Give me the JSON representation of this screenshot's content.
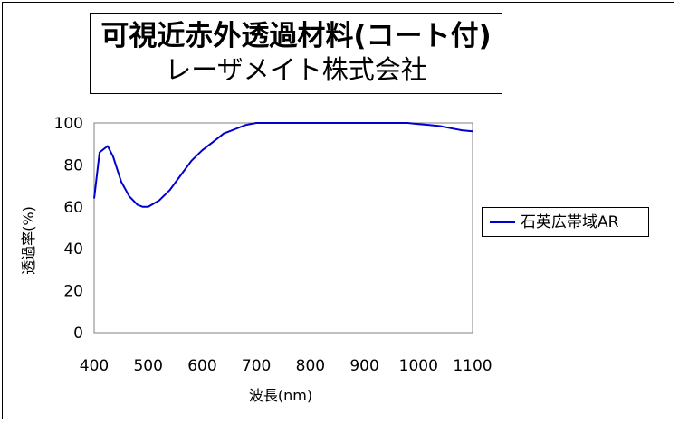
{
  "title": {
    "line1": "可視近赤外透過材料(コート付)",
    "line2": "レーザメイト株式会社"
  },
  "chart_data": {
    "type": "line",
    "xlabel": "波長(nm)",
    "ylabel": "透過率(%)",
    "xlim": [
      400,
      1100
    ],
    "ylim": [
      0,
      100
    ],
    "xticks": [
      400,
      500,
      600,
      700,
      800,
      900,
      1000,
      1100
    ],
    "yticks": [
      0,
      20,
      40,
      60,
      80,
      100
    ],
    "grid": false,
    "legend_position": "right",
    "series": [
      {
        "name": "石英広帯域AR",
        "color": "#0000cc",
        "x": [
          400,
          410,
          425,
          435,
          450,
          465,
          480,
          490,
          500,
          520,
          540,
          560,
          580,
          600,
          620,
          640,
          660,
          680,
          700,
          750,
          800,
          850,
          900,
          950,
          980,
          1000,
          1020,
          1040,
          1060,
          1080,
          1100
        ],
        "y": [
          64,
          86,
          89,
          84,
          72,
          65,
          61,
          60,
          60,
          63,
          68,
          75,
          82,
          87,
          91,
          95,
          97,
          99,
          100,
          100,
          100,
          100,
          100,
          100,
          100,
          99.5,
          99,
          98.5,
          97.5,
          96.5,
          96
        ]
      }
    ]
  }
}
